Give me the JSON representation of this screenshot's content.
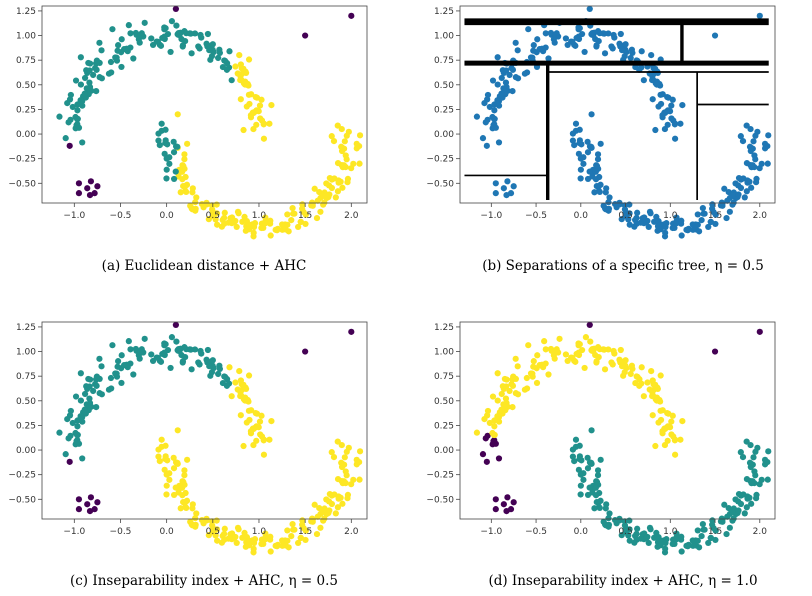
{
  "colors": {
    "purple": "#440154",
    "teal": "#21918c",
    "yellow": "#fde725",
    "blue": "#1f77b4",
    "black": "#000000"
  },
  "chart_data": [
    {
      "type": "scatter",
      "caption": "(a) Euclidean distance + AHC",
      "xlim": [
        -1.35,
        2.17
      ],
      "ylim": [
        -0.7,
        1.3
      ],
      "xticks": [
        "−1.0",
        "−0.5",
        "0.0",
        "0.5",
        "1.0",
        "1.5",
        "2.0"
      ],
      "yticks": [
        "1.25",
        "1.00",
        "0.75",
        "0.50",
        "0.25",
        "0.00",
        "−0.25",
        "−0.50"
      ],
      "grid": false,
      "coloring": "ahc_euclid"
    },
    {
      "type": "scatter",
      "caption": "(b) Separations of a specific tree, η = 0.5",
      "xlim": [
        -1.35,
        2.17
      ],
      "ylim": [
        -0.7,
        1.3
      ],
      "xticks": [
        "−1.0",
        "−0.5",
        "0.0",
        "0.5",
        "1.0",
        "1.5",
        "2.0"
      ],
      "yticks": [
        "1.25",
        "1.00",
        "0.75",
        "0.50",
        "0.25",
        "0.00",
        "−0.25",
        "−0.50"
      ],
      "grid": false,
      "coloring": "single_blue",
      "separations": [
        {
          "orientation": "horizontal",
          "y": 1.14,
          "x0": -1.3,
          "x1": 2.1,
          "weight": 4
        },
        {
          "orientation": "horizontal",
          "y": 0.72,
          "x0": -1.3,
          "x1": 2.1,
          "weight": 3
        },
        {
          "orientation": "vertical",
          "x": 1.13,
          "y0": 0.72,
          "y1": 1.14,
          "weight": 2
        },
        {
          "orientation": "vertical",
          "x": -0.37,
          "y0": -0.67,
          "y1": 0.72,
          "weight": 2
        },
        {
          "orientation": "horizontal",
          "y": 0.63,
          "x0": -0.37,
          "x1": 2.1,
          "weight": 1
        },
        {
          "orientation": "vertical",
          "x": 1.3,
          "y0": -0.67,
          "y1": 0.63,
          "weight": 1
        },
        {
          "orientation": "horizontal",
          "y": 0.3,
          "x0": 1.3,
          "x1": 2.1,
          "weight": 1
        },
        {
          "orientation": "horizontal",
          "y": -0.42,
          "x0": -1.3,
          "x1": -0.37,
          "weight": 1
        }
      ]
    },
    {
      "type": "scatter",
      "caption": "(c) Inseparability index + AHC, η = 0.5",
      "xlim": [
        -1.35,
        2.17
      ],
      "ylim": [
        -0.7,
        1.3
      ],
      "xticks": [
        "−1.0",
        "−0.5",
        "0.0",
        "0.5",
        "1.0",
        "1.5",
        "2.0"
      ],
      "yticks": [
        "1.25",
        "1.00",
        "0.75",
        "0.50",
        "0.25",
        "0.00",
        "−0.25",
        "−0.50"
      ],
      "grid": false,
      "coloring": "insep_05"
    },
    {
      "type": "scatter",
      "caption": "(d) Inseparability index + AHC, η = 1.0",
      "xlim": [
        -1.35,
        2.17
      ],
      "ylim": [
        -0.7,
        1.3
      ],
      "xticks": [
        "−1.0",
        "−0.5",
        "0.0",
        "0.5",
        "1.0",
        "1.5",
        "2.0"
      ],
      "yticks": [
        "1.25",
        "1.00",
        "0.75",
        "0.50",
        "0.25",
        "0.00",
        "−0.25",
        "−0.50"
      ],
      "grid": false,
      "coloring": "insep_10"
    }
  ],
  "dataset": {
    "points_per_moon": 180,
    "noise": 0.07,
    "outliers": [
      [
        0.1,
        1.27
      ],
      [
        1.5,
        1.0
      ],
      [
        2.0,
        1.2
      ],
      [
        -1.05,
        -0.12
      ]
    ],
    "cluster": [
      [
        -0.82,
        -0.48
      ],
      [
        -0.95,
        -0.5
      ],
      [
        -0.75,
        -0.53
      ],
      [
        -0.86,
        -0.55
      ],
      [
        -0.95,
        -0.6
      ],
      [
        -0.83,
        -0.62
      ],
      [
        -0.78,
        -0.6
      ]
    ]
  }
}
